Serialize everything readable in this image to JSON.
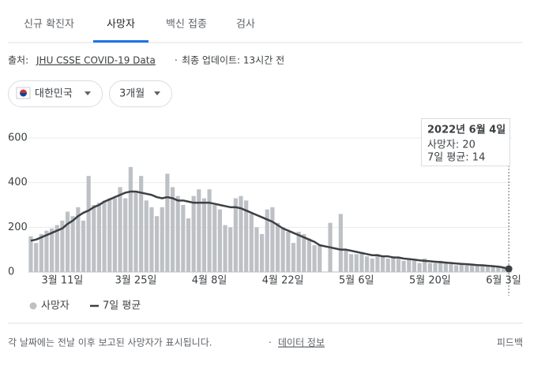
{
  "tabs": [
    "신규 확진자",
    "사망자",
    "백신 접종",
    "검사"
  ],
  "source": {
    "prefix": "출처:",
    "link": "JHU CSSE COVID-19 Data",
    "separator": "·",
    "updated": "최종 업데이트: 13시간 전"
  },
  "filters": {
    "country": "대한민국",
    "range": "3개월"
  },
  "chart_data": {
    "type": "bar",
    "categories": [
      null,
      null,
      null,
      null,
      null,
      null,
      "3월 11일",
      null,
      null,
      null,
      null,
      null,
      null,
      null,
      null,
      null,
      null,
      null,
      null,
      null,
      "3월 25일",
      null,
      null,
      null,
      null,
      null,
      null,
      null,
      null,
      null,
      null,
      null,
      null,
      null,
      "4월 8일",
      null,
      null,
      null,
      null,
      null,
      null,
      null,
      null,
      null,
      null,
      null,
      null,
      null,
      "4월 22일",
      null,
      null,
      null,
      null,
      null,
      null,
      null,
      null,
      null,
      null,
      null,
      null,
      null,
      "5월 6일",
      null,
      null,
      null,
      null,
      null,
      null,
      null,
      null,
      null,
      null,
      null,
      null,
      null,
      "5월 20일",
      null,
      null,
      null,
      null,
      null,
      null,
      null,
      null,
      null,
      null,
      null,
      null,
      null,
      "6월 3일",
      null
    ],
    "series": [
      {
        "name": "사망자",
        "type": "bar",
        "color": "#bdc1c6",
        "values": [
          160,
          130,
          170,
          185,
          195,
          210,
          230,
          270,
          250,
          290,
          230,
          430,
          300,
          310,
          320,
          330,
          330,
          380,
          330,
          470,
          360,
          430,
          320,
          290,
          250,
          290,
          440,
          380,
          340,
          300,
          240,
          340,
          370,
          330,
          370,
          300,
          280,
          210,
          200,
          330,
          340,
          320,
          260,
          200,
          170,
          280,
          290,
          220,
          200,
          180,
          130,
          180,
          170,
          150,
          120,
          120,
          0,
          220,
          0,
          260,
          100,
          80,
          80,
          90,
          70,
          60,
          80,
          70,
          60,
          70,
          60,
          50,
          60,
          50,
          40,
          60,
          40,
          40,
          50,
          40,
          40,
          30,
          40,
          30,
          30,
          30,
          30,
          25,
          25,
          20,
          20,
          20
        ]
      },
      {
        "name": "7일 평균",
        "type": "line",
        "color": "#3c4043",
        "values": [
          140,
          145,
          155,
          165,
          175,
          185,
          195,
          215,
          230,
          250,
          265,
          275,
          290,
          300,
          315,
          325,
          335,
          345,
          355,
          360,
          360,
          355,
          350,
          345,
          335,
          330,
          335,
          330,
          320,
          320,
          315,
          310,
          310,
          310,
          310,
          305,
          300,
          295,
          290,
          290,
          285,
          275,
          265,
          255,
          245,
          235,
          225,
          210,
          195,
          185,
          175,
          165,
          155,
          145,
          135,
          120,
          115,
          110,
          105,
          100,
          100,
          95,
          90,
          85,
          80,
          75,
          75,
          70,
          70,
          65,
          65,
          60,
          58,
          55,
          52,
          50,
          48,
          46,
          44,
          42,
          40,
          38,
          36,
          35,
          33,
          31,
          30,
          28,
          26,
          24,
          20,
          14
        ]
      }
    ],
    "ylim": [
      0,
      600
    ],
    "yticks": [
      0,
      200,
      400,
      600
    ],
    "grid": true,
    "tooltip": {
      "date": "2022년 6월 4일",
      "deaths": "사망자: 20",
      "average": "7일 평균: 14"
    }
  },
  "footer": {
    "note": "각 날짜에는 전날 이후 보고된 사망자가 표시됩니다.",
    "separator": "·",
    "link": "데이터 정보",
    "feedback": "피드백"
  }
}
